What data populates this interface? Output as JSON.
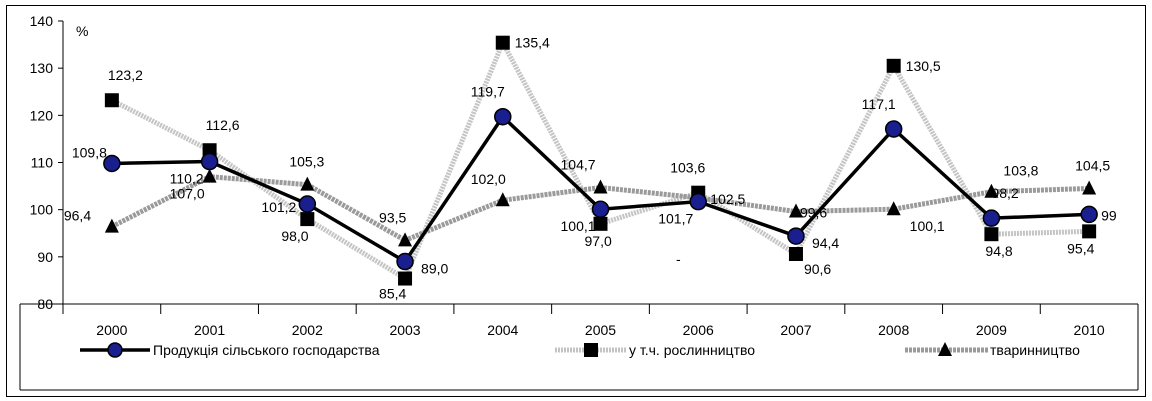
{
  "chart_data": {
    "type": "line",
    "title": "",
    "ylabel": "%",
    "xlabel": "",
    "ylim": [
      80,
      140
    ],
    "yticks": [
      80,
      90,
      100,
      110,
      120,
      130,
      140
    ],
    "grid": false,
    "legend_position": "bottom",
    "categories": [
      "2000",
      "2001",
      "2002",
      "2003",
      "2004",
      "2005",
      "2006",
      "2007",
      "2008",
      "2009",
      "2010"
    ],
    "series": [
      {
        "name": "Продукція сільського господарства",
        "marker": "circle",
        "color": "#000000",
        "marker_color": "#1a1f8f",
        "values": [
          109.8,
          110.2,
          101.2,
          89.0,
          119.7,
          100.1,
          101.7,
          94.4,
          117.1,
          98.2,
          99
        ],
        "labels": [
          "109,8",
          "110,2",
          "101,2",
          "89,0",
          "119,7",
          "100,1",
          "101,7",
          "94,4",
          "117,1",
          "98,2",
          "99"
        ]
      },
      {
        "name": "у т.ч. рослинництво",
        "marker": "square",
        "color": "#bdbdbd",
        "marker_color": "#000000",
        "values": [
          123.2,
          112.6,
          98.0,
          85.4,
          135.4,
          97.0,
          103.6,
          90.6,
          130.5,
          94.8,
          95.4
        ],
        "labels": [
          "123,2",
          "112,6",
          "98,0",
          "85,4",
          "135,4",
          "97,0",
          "103,6",
          "90,6",
          "130,5",
          "94,8",
          "95,4"
        ]
      },
      {
        "name": "тваринництво",
        "marker": "triangle",
        "color": "#8c8c8c",
        "marker_color": "#000000",
        "values": [
          96.4,
          107.0,
          105.3,
          93.5,
          102.0,
          104.7,
          102.5,
          99.6,
          100.1,
          103.8,
          104.5
        ],
        "labels": [
          "96,4",
          "107,0",
          "105,3",
          "93,5",
          "102,0",
          "104,7",
          "102,5",
          "99,6",
          "100,1",
          "103,8",
          "104,5"
        ]
      }
    ],
    "annotations": [
      "-"
    ]
  }
}
